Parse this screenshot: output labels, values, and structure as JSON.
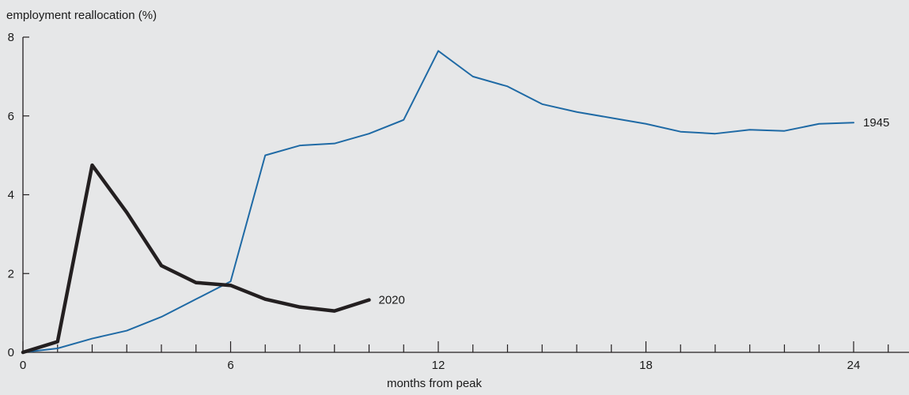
{
  "chart_data": {
    "type": "line",
    "title": "",
    "ylabel": "employment reallocation (%)",
    "xlabel": "months from peak",
    "xlim": [
      0,
      25.6
    ],
    "ylim": [
      0,
      8
    ],
    "x_ticks_labeled": [
      0,
      6,
      12,
      18,
      24
    ],
    "x_tick_labels": [
      "0",
      "6",
      "12",
      "18",
      "24"
    ],
    "x_ticks_minor_step": 1,
    "y_ticks": [
      0,
      2,
      4,
      6,
      8
    ],
    "y_tick_labels": [
      "0",
      "2",
      "4",
      "6",
      "8"
    ],
    "grid": false,
    "series": [
      {
        "name": "1945",
        "color": "#1f6aa5",
        "x": [
          0,
          1,
          2,
          3,
          4,
          5,
          6,
          7,
          8,
          9,
          10,
          11,
          12,
          13,
          14,
          15,
          16,
          17,
          18,
          19,
          20,
          21,
          22,
          23,
          24
        ],
        "values": [
          0.0,
          0.1,
          0.35,
          0.55,
          0.9,
          1.35,
          1.8,
          5.0,
          5.25,
          5.3,
          5.55,
          5.9,
          7.65,
          7.0,
          6.75,
          6.3,
          6.1,
          5.95,
          5.8,
          5.6,
          5.55,
          5.65,
          5.62,
          5.8,
          5.83
        ]
      },
      {
        "name": "2020",
        "color": "#231f20",
        "x": [
          0,
          1,
          2,
          3,
          4,
          5,
          6,
          7,
          8,
          9,
          10
        ],
        "values": [
          0.0,
          0.27,
          4.75,
          3.55,
          2.2,
          1.77,
          1.7,
          1.35,
          1.15,
          1.05,
          1.33
        ]
      }
    ]
  }
}
